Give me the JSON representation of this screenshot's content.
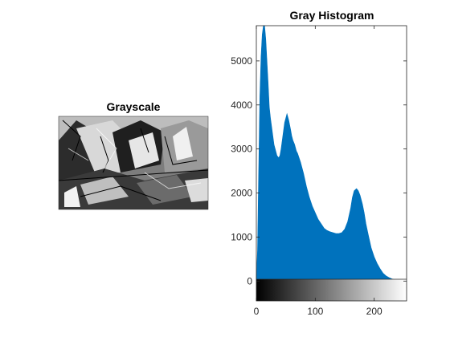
{
  "left_panel": {
    "title": "Grayscale"
  },
  "chart_data": {
    "type": "area",
    "title": "Gray Histogram",
    "xlabel": "",
    "ylabel": "",
    "xlim": [
      0,
      255
    ],
    "ylim": [
      -450,
      5800
    ],
    "x_ticks": [
      0,
      100,
      200
    ],
    "y_ticks": [
      0,
      1000,
      2000,
      3000,
      4000,
      5000
    ],
    "grid": false,
    "color": "#0072BD",
    "colorbar": {
      "from": 0,
      "to": 255,
      "colormap": "gray"
    },
    "series": [
      {
        "x": [
          0,
          2,
          4,
          6,
          8,
          10,
          12,
          14,
          16,
          18,
          20,
          22,
          24,
          26,
          28,
          30,
          32,
          35,
          38,
          40,
          42,
          45,
          48,
          50,
          52,
          55,
          58,
          60,
          62,
          65,
          68,
          70,
          75,
          80,
          85,
          90,
          95,
          100,
          105,
          110,
          115,
          120,
          125,
          130,
          135,
          140,
          145,
          150,
          155,
          160,
          163,
          166,
          170,
          173,
          176,
          180,
          183,
          186,
          190,
          195,
          200,
          205,
          210,
          215,
          220,
          225,
          230,
          235,
          240,
          245,
          250,
          255
        ],
        "values": [
          50,
          700,
          2500,
          4200,
          5100,
          5600,
          5800,
          5800,
          5500,
          5000,
          4500,
          3950,
          3700,
          3500,
          3300,
          3100,
          3000,
          2850,
          2800,
          2850,
          3000,
          3300,
          3600,
          3700,
          3800,
          3650,
          3450,
          3300,
          3200,
          3100,
          2950,
          2900,
          2700,
          2450,
          2150,
          1900,
          1700,
          1550,
          1400,
          1300,
          1200,
          1150,
          1120,
          1100,
          1080,
          1080,
          1100,
          1180,
          1350,
          1650,
          1900,
          2050,
          2100,
          2050,
          1950,
          1750,
          1550,
          1300,
          1050,
          750,
          550,
          400,
          280,
          180,
          120,
          80,
          50,
          30,
          10,
          5,
          0,
          0
        ]
      }
    ]
  }
}
